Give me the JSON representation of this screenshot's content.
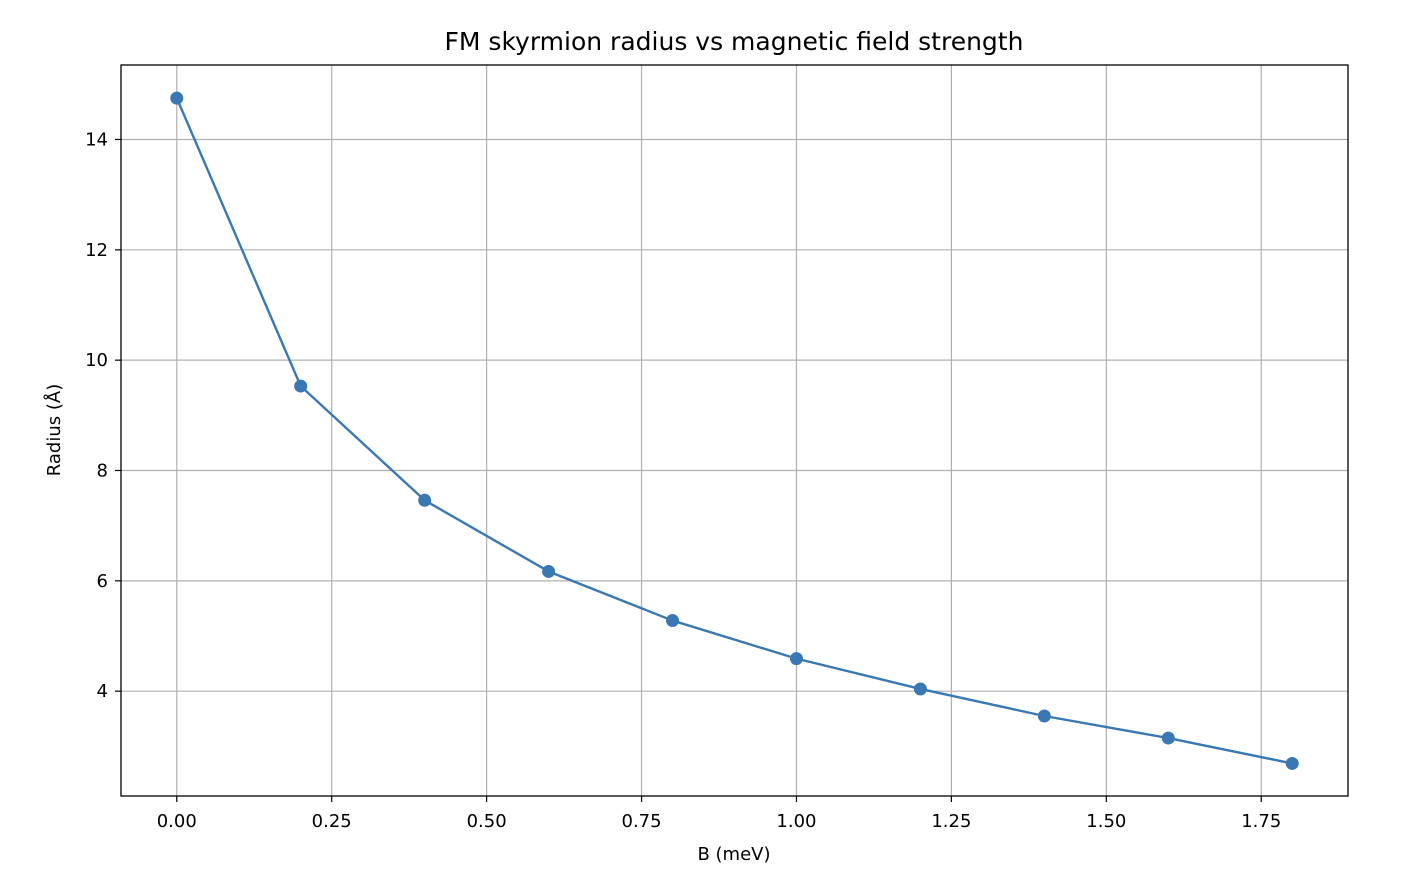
{
  "chart_data": {
    "type": "line",
    "title": "FM skyrmion radius vs magnetic field strength",
    "xlabel": "B (meV)",
    "ylabel": "Radius (Å)",
    "xlim": [
      -0.09,
      1.89
    ],
    "ylim": [
      2.1,
      15.35
    ],
    "xticks": [
      0.0,
      0.25,
      0.5,
      0.75,
      1.0,
      1.25,
      1.5,
      1.75
    ],
    "xtick_labels": [
      "0.00",
      "0.25",
      "0.50",
      "0.75",
      "1.00",
      "1.25",
      "1.50",
      "1.75"
    ],
    "yticks": [
      4,
      6,
      8,
      10,
      12,
      14
    ],
    "ytick_labels": [
      "4",
      "6",
      "8",
      "10",
      "12",
      "14"
    ],
    "grid": true,
    "legend": "none",
    "series_color": "#3a78b4",
    "x": [
      0.0,
      0.2,
      0.4,
      0.6,
      0.8,
      1.0,
      1.2,
      1.4,
      1.6,
      1.8
    ],
    "series": [
      {
        "values": [
          14.75,
          9.53,
          7.46,
          6.17,
          5.28,
          4.59,
          4.04,
          3.55,
          3.15,
          2.69
        ]
      }
    ]
  }
}
